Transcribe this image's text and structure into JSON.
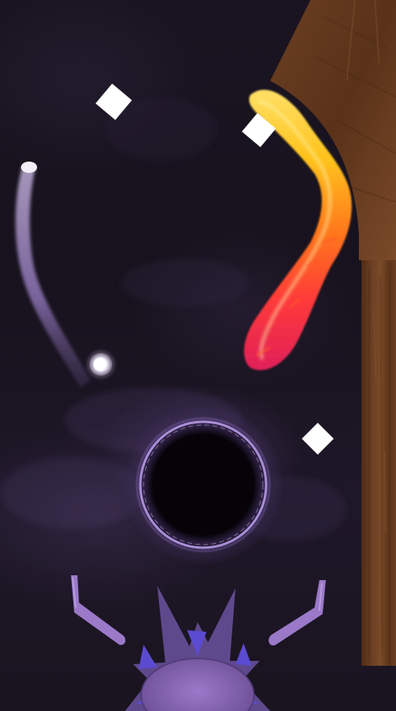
{
  "game": {
    "scene": "pinball-table",
    "theme": "dark-cosmic",
    "colors": {
      "background": "#1a1422",
      "wood": "#6b3f22",
      "wood_dark": "#4e2c16",
      "portal_ring": "#b79ae8",
      "flipper": "#9b79c9",
      "spike_hub": "#8a68b8",
      "spike_accent": "#5b4bd1",
      "flame_hot": "#ffd43a",
      "flame_mid": "#ff7a1a",
      "flame_cool": "#f0245a",
      "ball": "#f2eef6",
      "diamond": "#ffffff",
      "launch_trail": "#c2a8e6"
    },
    "elements": {
      "ball": "white-ball",
      "portal": "black-hole-portal",
      "flippers": [
        "left-flipper",
        "right-flipper"
      ],
      "bumpers": [
        "diamond-bumper",
        "diamond-bumper",
        "diamond-bumper"
      ],
      "ramp": "fire-ramp",
      "wall": "wooden-wall",
      "launcher": "spiked-launcher"
    }
  }
}
